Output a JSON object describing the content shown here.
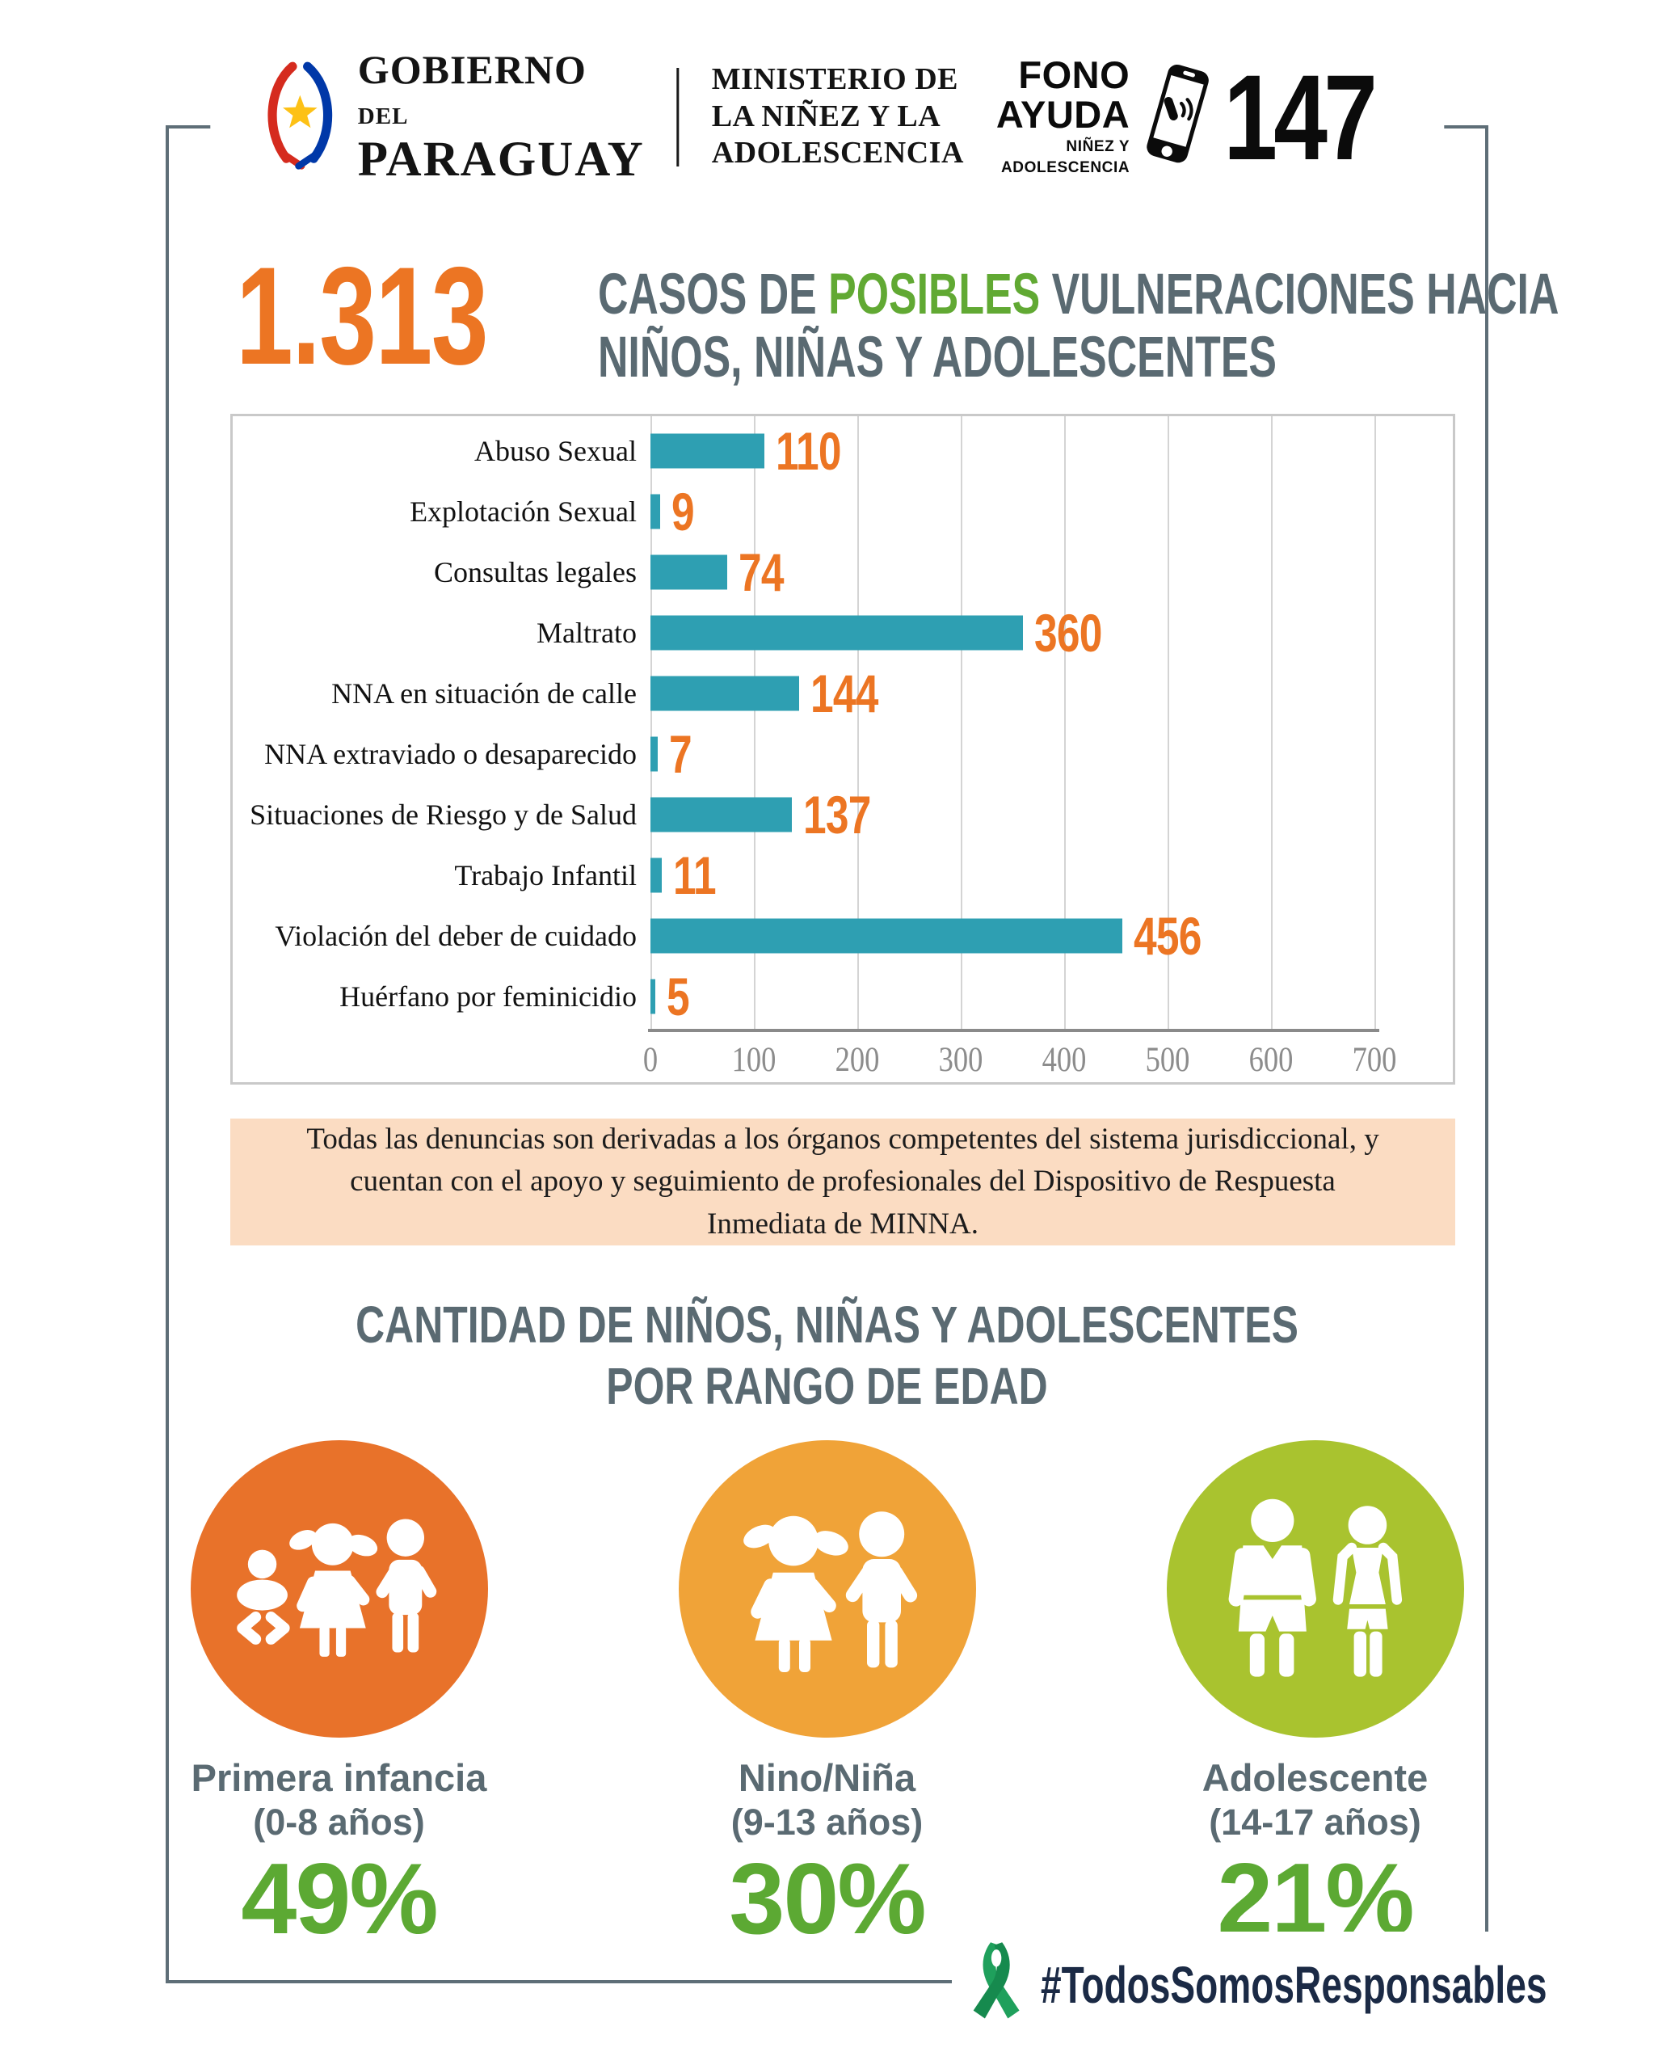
{
  "header": {
    "gov": {
      "line1": "GOBIERNO",
      "line1_small": "DEL",
      "line2": "PARAGUAY"
    },
    "ministry": {
      "line1": "MINISTERIO DE",
      "line2": "LA NIÑEZ Y LA",
      "line3": "ADOLESCENCIA"
    },
    "fono": {
      "word1": "FONO",
      "word2": "AYUDA",
      "sub1": "NIÑEZ Y",
      "sub2": "ADOLESCENCIA",
      "number": "147"
    }
  },
  "title": {
    "figure": "1.313",
    "part1": "CASOS DE ",
    "highlight": "POSIBLES",
    "part2": " VULNERACIONES HACIA",
    "line2": "NIÑOS, NIÑAS Y ADOLESCENTES"
  },
  "chart_data": {
    "type": "bar",
    "orientation": "horizontal",
    "categories": [
      "Abuso Sexual",
      "Explotación Sexual",
      "Consultas legales",
      "Maltrato",
      "NNA en situación de calle",
      "NNA extraviado o desaparecido",
      "Situaciones de Riesgo y de Salud",
      "Trabajo Infantil",
      "Violación del deber de cuidado",
      "Huérfano por feminicidio"
    ],
    "values": [
      110,
      9,
      74,
      360,
      144,
      7,
      137,
      11,
      456,
      5
    ],
    "total_label": "1.313",
    "xlim": [
      0,
      700
    ],
    "ticks": [
      0,
      100,
      200,
      300,
      400,
      500,
      600,
      700
    ],
    "grid": true,
    "bar_color": "#2e9fb2",
    "value_label_color": "#ec7523"
  },
  "note": {
    "lines": [
      "Todas las denuncias son derivadas a los órganos competentes del sistema jurisdiccional, y",
      "cuentan con el apoyo y seguimiento de profesionales del Dispositivo de Respuesta",
      "Inmediata de MINNA."
    ]
  },
  "section2": {
    "line1": "CANTIDAD DE NIÑOS, NIÑAS Y ADOLESCENTES",
    "line2": "POR RANGO DE EDAD",
    "groups": [
      {
        "label": "Primera infancia",
        "range": "(0-8 años)",
        "percent": "49%",
        "color": "#e8722a",
        "icon": "baby-girl-boy-icon"
      },
      {
        "label": "Nino/Niña",
        "range": "(9-13 años)",
        "percent": "30%",
        "color": "#f0a338",
        "icon": "girl-boy-icon"
      },
      {
        "label": "Adolescente",
        "range": "(14-17 años)",
        "percent": "21%",
        "color": "#a9c32f",
        "icon": "teen-boy-girl-icon"
      }
    ]
  },
  "footer": {
    "hashtag": "#TodosSomosResponsables"
  },
  "colors": {
    "accent_orange": "#ec7523",
    "accent_green": "#61a933",
    "heading_slate": "#5a6a72",
    "bar_teal": "#2e9fb2",
    "note_peach": "#fbdcc2",
    "hashtag_navy": "#1b2a45",
    "ribbon_green": "#1fa05c",
    "frame_gray": "#5e6e77"
  }
}
